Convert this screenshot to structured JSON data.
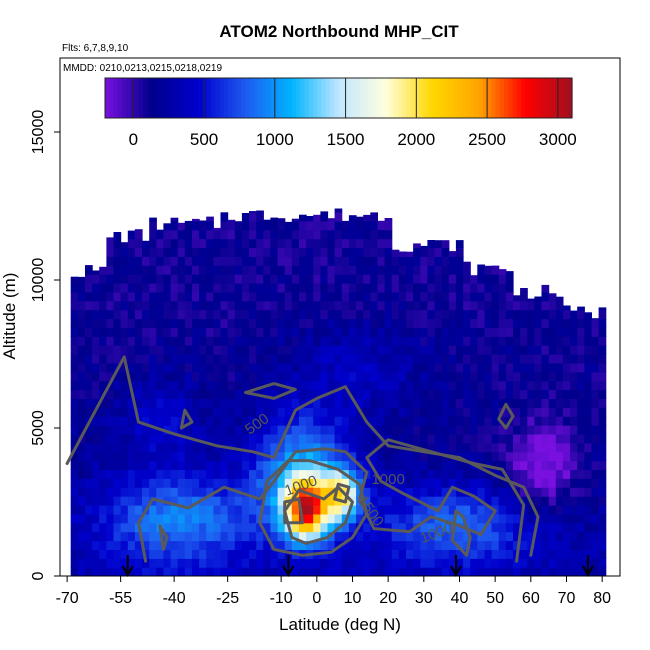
{
  "chart_data": {
    "type": "heatmap",
    "title": "ATOM2 Northbound MHP_CIT",
    "subtitle_flights": "Flts: 6,7,8,9,10",
    "subtitle_dates": "MMDD: 0210,0213,0215,0218,0219",
    "xlabel": "Latitude (deg N)",
    "ylabel": "Altitude (m)",
    "xlim": [
      -72,
      85
    ],
    "ylim": [
      0,
      17500
    ],
    "x_ticks": [
      -70,
      -55,
      -40,
      -25,
      -10,
      0,
      10,
      20,
      30,
      40,
      50,
      60,
      70,
      80
    ],
    "y_ticks": [
      0,
      5000,
      10000,
      15000
    ],
    "x_tick_labels": [
      "-70",
      "-55",
      "-40",
      "-25",
      "-10",
      "0",
      "10",
      "20",
      "30",
      "40",
      "50",
      "60",
      "70",
      "80"
    ],
    "y_tick_labels": [
      "0",
      "5000",
      "10000",
      "15000"
    ],
    "colorbar": {
      "range": [
        -200,
        3100
      ],
      "ticks": [
        0,
        500,
        1000,
        1500,
        2000,
        2500,
        3000
      ],
      "tick_labels": [
        "0",
        "500",
        "1000",
        "1500",
        "2000",
        "2500",
        "3000"
      ],
      "colors": [
        "#7a10e0",
        "#00008b",
        "#0000cd",
        "#1e5af0",
        "#00b4ff",
        "#bfe6ff",
        "#ffffe0",
        "#ffd700",
        "#ffa500",
        "#ff0000",
        "#a01020"
      ]
    },
    "contour_levels": [
      "500",
      "1000",
      "1500",
      "1000",
      "1000"
    ],
    "flight_marker_latitudes": [
      -53,
      -8,
      39,
      76
    ],
    "grid": false,
    "legend": "colorbar-top"
  }
}
